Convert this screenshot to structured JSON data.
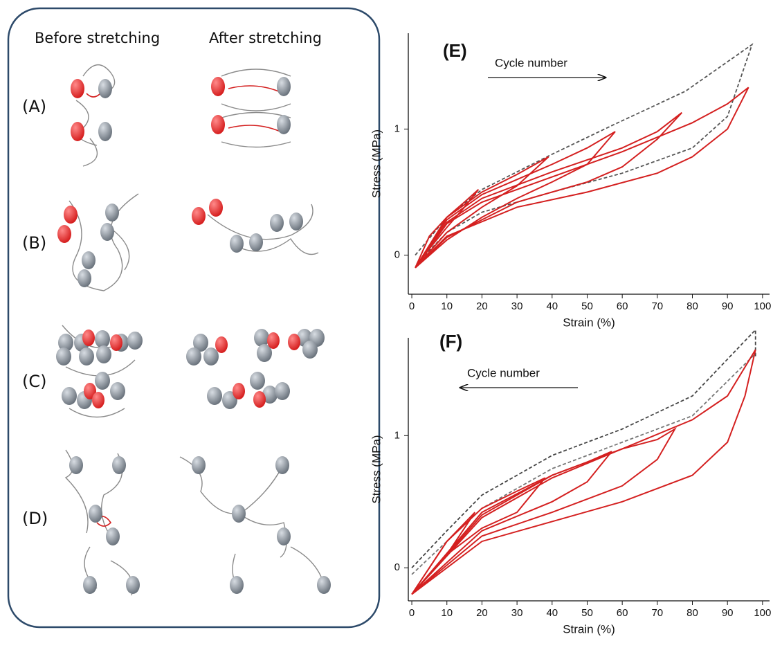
{
  "diagram": {
    "before_label": "Before stretching",
    "after_label": "After stretching",
    "rows": [
      "(A)",
      "(B)",
      "(C)",
      "(D)"
    ]
  },
  "chart_data": [
    {
      "type": "line",
      "title": "(E)",
      "annotation": "Cycle number",
      "x_label": "Strain (%)",
      "y_label": "Stress (MPa)",
      "xlim": [
        -1,
        102
      ],
      "ylim": [
        -0.31,
        1.76
      ],
      "xticks": [
        0,
        10,
        20,
        30,
        40,
        50,
        60,
        70,
        80,
        90,
        100
      ],
      "yticks": [
        0,
        1
      ],
      "series": [
        {
          "color": "#555555",
          "dashed": true,
          "x": [
            1,
            10,
            20,
            40,
            58,
            78,
            97,
            90,
            80,
            60,
            40,
            20,
            10,
            1
          ],
          "values": [
            0,
            0.3,
            0.52,
            0.8,
            1.04,
            1.3,
            1.67,
            1.1,
            0.85,
            0.65,
            0.5,
            0.34,
            0.18,
            -0.08
          ]
        },
        {
          "color": "#d42020",
          "dashed": false,
          "x": [
            1,
            5,
            10,
            15,
            19,
            15,
            10,
            5,
            1
          ],
          "values": [
            -0.1,
            0.15,
            0.3,
            0.42,
            0.52,
            0.38,
            0.22,
            0.05,
            -0.1
          ]
        },
        {
          "color": "#d42020",
          "dashed": false,
          "x": [
            1,
            10,
            20,
            30,
            39,
            30,
            20,
            10,
            1
          ],
          "values": [
            -0.1,
            0.3,
            0.5,
            0.64,
            0.78,
            0.55,
            0.38,
            0.18,
            -0.1
          ]
        },
        {
          "color": "#d42020",
          "dashed": false,
          "x": [
            1,
            10,
            20,
            30,
            40,
            50,
            58,
            50,
            40,
            30,
            20,
            10,
            1
          ],
          "values": [
            -0.1,
            0.28,
            0.48,
            0.6,
            0.72,
            0.85,
            0.98,
            0.72,
            0.58,
            0.45,
            0.3,
            0.12,
            -0.1
          ]
        },
        {
          "color": "#d42020",
          "dashed": false,
          "x": [
            1,
            10,
            20,
            40,
            60,
            70,
            77,
            70,
            60,
            50,
            30,
            10,
            1
          ],
          "values": [
            -0.1,
            0.26,
            0.45,
            0.66,
            0.85,
            0.98,
            1.13,
            0.92,
            0.7,
            0.58,
            0.42,
            0.14,
            -0.1
          ]
        },
        {
          "color": "#d42020",
          "dashed": false,
          "x": [
            1,
            10,
            20,
            40,
            60,
            80,
            90,
            96,
            90,
            80,
            70,
            50,
            30,
            10,
            1
          ],
          "values": [
            -0.1,
            0.25,
            0.42,
            0.62,
            0.82,
            1.05,
            1.2,
            1.33,
            1.0,
            0.78,
            0.65,
            0.5,
            0.38,
            0.15,
            -0.1
          ]
        }
      ]
    },
    {
      "type": "line",
      "title": "(F)",
      "annotation": "Cycle number",
      "x_label": "Strain (%)",
      "y_label": "Stress (MPa)",
      "xlim": [
        -1,
        102
      ],
      "ylim": [
        -0.25,
        1.74
      ],
      "xticks": [
        0,
        10,
        20,
        30,
        40,
        50,
        60,
        70,
        80,
        90,
        100
      ],
      "yticks": [
        0,
        1
      ],
      "series": [
        {
          "color": "#444444",
          "dashed": true,
          "x": [
            0,
            10,
            20,
            40,
            60,
            80,
            98,
            98
          ],
          "values": [
            0,
            0.28,
            0.55,
            0.85,
            1.05,
            1.3,
            1.8,
            1.6
          ]
        },
        {
          "color": "#777777",
          "dashed": true,
          "x": [
            0,
            20,
            40,
            60,
            80,
            98
          ],
          "values": [
            -0.05,
            0.45,
            0.75,
            0.95,
            1.15,
            1.62
          ]
        },
        {
          "color": "#d42020",
          "dashed": false,
          "x": [
            0,
            10,
            18,
            10,
            0
          ],
          "values": [
            -0.2,
            0.2,
            0.42,
            0.1,
            -0.2
          ]
        },
        {
          "color": "#d42020",
          "dashed": false,
          "x": [
            0,
            10,
            20,
            30,
            38,
            30,
            20,
            10,
            0
          ],
          "values": [
            -0.2,
            0.2,
            0.45,
            0.58,
            0.68,
            0.42,
            0.3,
            0.1,
            -0.2
          ]
        },
        {
          "color": "#d42020",
          "dashed": false,
          "x": [
            0,
            20,
            40,
            50,
            57,
            50,
            40,
            20,
            0
          ],
          "values": [
            -0.2,
            0.42,
            0.7,
            0.8,
            0.88,
            0.65,
            0.5,
            0.28,
            -0.2
          ]
        },
        {
          "color": "#d42020",
          "dashed": false,
          "x": [
            0,
            20,
            40,
            60,
            70,
            75,
            70,
            60,
            40,
            20,
            0
          ],
          "values": [
            -0.2,
            0.4,
            0.7,
            0.9,
            0.97,
            1.05,
            0.82,
            0.62,
            0.42,
            0.24,
            -0.2
          ]
        },
        {
          "color": "#d42020",
          "dashed": false,
          "x": [
            0,
            20,
            40,
            60,
            80,
            90,
            98,
            95,
            90,
            80,
            60,
            40,
            20,
            0
          ],
          "values": [
            -0.2,
            0.38,
            0.68,
            0.9,
            1.12,
            1.3,
            1.65,
            1.3,
            0.95,
            0.7,
            0.5,
            0.35,
            0.2,
            -0.2
          ]
        }
      ]
    }
  ]
}
